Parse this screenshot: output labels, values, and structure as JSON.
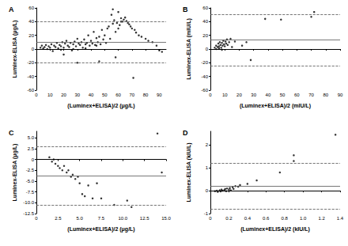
{
  "chart_data": [
    {
      "type": "scatter",
      "title": "A",
      "x_label": "(Luminex+ELISA)/2 (μg/L)",
      "y_label": "Luminex-ELISA (μg/L)",
      "x": [
        3,
        4,
        5,
        6,
        7,
        8,
        9,
        10,
        11,
        12,
        13,
        14,
        15,
        16,
        17,
        18,
        19,
        20,
        21,
        22,
        23,
        24,
        25,
        26,
        27,
        28,
        29,
        30,
        31,
        32,
        33,
        34,
        35,
        36,
        37,
        38,
        39,
        40,
        41,
        42,
        43,
        44,
        45,
        46,
        47,
        48,
        49,
        50,
        51,
        52,
        53,
        54,
        55,
        56,
        57,
        58,
        59,
        60,
        61,
        62,
        63,
        64,
        65,
        66,
        67,
        68,
        69,
        70,
        71,
        72,
        73,
        75,
        77,
        80,
        82,
        85,
        88,
        90,
        92,
        20,
        30,
        46,
        58,
        62,
        56,
        60,
        44,
        36,
        27,
        18
      ],
      "values": [
        2,
        5,
        1,
        3,
        6,
        0,
        4,
        2,
        7,
        -3,
        5,
        3,
        9,
        1,
        6,
        4,
        10,
        2,
        8,
        12,
        5,
        3,
        9,
        -2,
        7,
        11,
        4,
        15,
        8,
        6,
        10,
        2,
        14,
        7,
        9,
        20,
        5,
        12,
        8,
        25,
        6,
        16,
        10,
        18,
        7,
        28,
        14,
        20,
        9,
        30,
        33,
        15,
        50,
        37,
        42,
        25,
        38,
        30,
        35,
        45,
        40,
        43,
        46,
        41,
        38,
        36,
        33,
        30,
        -42,
        28,
        24,
        20,
        18,
        15,
        12,
        10,
        5,
        -2,
        -4,
        -8,
        -20,
        -18,
        -12,
        40,
        58,
        54,
        5,
        1,
        0,
        -1
      ],
      "bias": 10,
      "limits": [
        -20,
        40
      ],
      "xlim": [
        0,
        95
      ],
      "xticks": [
        0,
        10,
        20,
        30,
        40,
        50,
        60,
        70,
        80,
        90
      ],
      "ylim": [
        -60,
        60
      ],
      "yticks": [
        -60,
        -40,
        -20,
        0,
        20,
        40,
        60
      ],
      "color": "#000000"
    },
    {
      "type": "scatter",
      "title": "B",
      "x_label": "(Luminex+ELISA)/2 (mIU/L)",
      "y_label": "Luminex-ELISA (mIU/L)",
      "x": [
        3,
        4,
        5,
        5.5,
        6,
        6.5,
        7,
        7.5,
        8,
        8.5,
        9,
        9.5,
        10,
        10.5,
        11,
        11.5,
        12,
        13,
        14,
        15,
        4,
        6,
        8,
        17,
        22,
        25,
        28,
        38,
        49,
        70,
        72
      ],
      "values": [
        2,
        5,
        3,
        8,
        4,
        10,
        6,
        2,
        9,
        5,
        12,
        7,
        4,
        11,
        8,
        14,
        6,
        10,
        15,
        3,
        0,
        1,
        -1,
        11,
        5,
        10,
        -16,
        44,
        43,
        47,
        54
      ],
      "bias": 13,
      "limits": [
        -24,
        50
      ],
      "xlim": [
        0,
        90
      ],
      "xticks": [
        0,
        10,
        20,
        30,
        40,
        50,
        60,
        70,
        80,
        90
      ],
      "ylim": [
        -60,
        60
      ],
      "yticks": [
        -60,
        -40,
        -20,
        0,
        20,
        40,
        60
      ],
      "color": "#000000"
    },
    {
      "type": "scatter",
      "title": "C",
      "x_label": "(Luminex+ELISA)/2 (μg/L)",
      "y_label": "Luminex-ELISA (μg/L)",
      "x": [
        1.5,
        1.8,
        2,
        2.2,
        2.5,
        2.7,
        3,
        3.2,
        3.5,
        3.7,
        4,
        4.2,
        4.5,
        4.8,
        5,
        5.3,
        5.6,
        6,
        6.5,
        7,
        7.5,
        9,
        10.5,
        11,
        14,
        14.5
      ],
      "values": [
        0.5,
        -0.5,
        0,
        -1,
        -1.5,
        -2,
        -2.5,
        -1.5,
        -3,
        -2.5,
        -4,
        -3.5,
        -4.5,
        -4,
        -5.5,
        -8,
        -8.5,
        -6,
        -9,
        -5.5,
        -9,
        -10.5,
        -9.5,
        -11,
        6,
        -3
      ],
      "bias": -3.8,
      "limits": [
        -10.5,
        3
      ],
      "xlim": [
        0,
        15
      ],
      "xticks": [
        0,
        2.5,
        {
          "value": 5,
          "label": "5.0"
        },
        7.5,
        {
          "value": 10,
          "label": "10.0"
        },
        12.5,
        {
          "value": 15,
          "label": "15.0"
        }
      ],
      "ylim": [
        -12.5,
        6.5
      ],
      "yticks": [
        -12.5,
        {
          "value": -10,
          "label": "-10.0"
        },
        -7.5,
        {
          "value": -5,
          "label": "-5.0"
        },
        -2.5,
        0,
        2.5,
        {
          "value": 5,
          "label": "5.0"
        }
      ],
      "color": "#000000"
    },
    {
      "type": "scatter",
      "title": "D",
      "x_label": "(Luminex+ELISA)/2 (kIU/L)",
      "y_label": "Luminex-ELISA (kIU/L)",
      "x": [
        0.05,
        0.07,
        0.08,
        0.1,
        0.11,
        0.12,
        0.13,
        0.15,
        0.16,
        0.17,
        0.18,
        0.2,
        0.21,
        0.22,
        0.24,
        0.25,
        0.27,
        0.3,
        0.32,
        0.4,
        0.5,
        0.75,
        0.9,
        0.9,
        1.35
      ],
      "values": [
        -0.02,
        0,
        -0.05,
        0.02,
        -0.03,
        0.05,
        0,
        0.03,
        0.08,
        -0.02,
        0.1,
        0.05,
        0.12,
        0.02,
        0.15,
        0.08,
        0.2,
        0.18,
        0.25,
        0.3,
        0.45,
        0.8,
        1.55,
        1.3,
        2.45
      ],
      "bias": 0.2,
      "limits": [
        -0.8,
        1.2
      ],
      "xlim": [
        0,
        1.4
      ],
      "xticks": [
        0,
        0.2,
        0.4,
        0.6,
        0.8,
        {
          "value": 1,
          "label": "1.0"
        },
        1.2,
        1.4
      ],
      "ylim": [
        -1,
        2.6
      ],
      "yticks": [
        -1,
        0,
        1,
        2
      ],
      "color": "#000000"
    }
  ]
}
